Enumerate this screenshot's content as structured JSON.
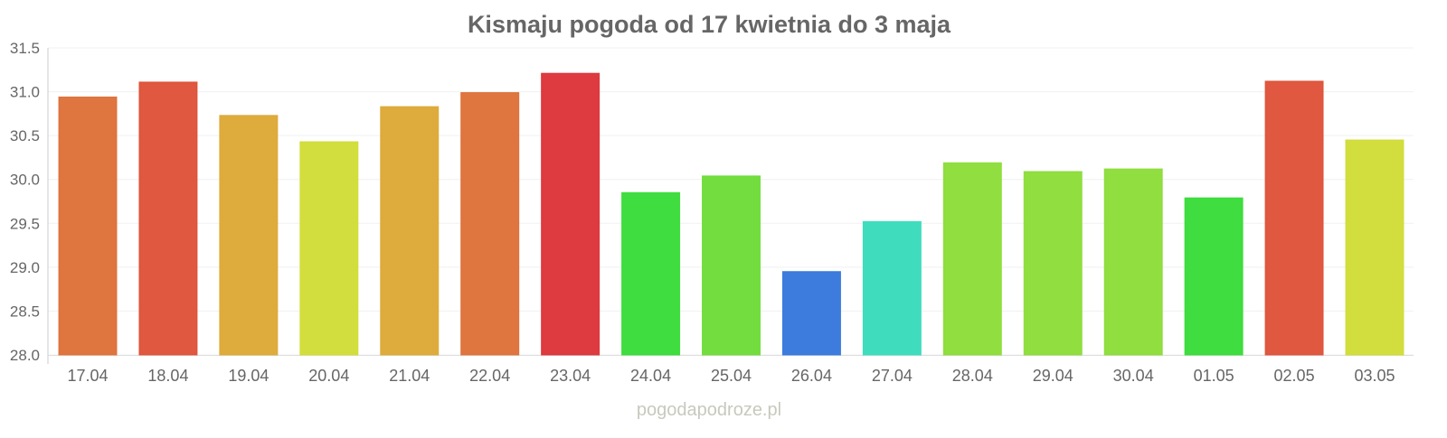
{
  "chart_data": {
    "type": "bar",
    "title": "Kismaju pogoda od 17 kwietnia do 3 maja",
    "xlabel": "",
    "ylabel": "",
    "ylim": [
      28.0,
      31.5
    ],
    "yticks": [
      "28.0",
      "28.5",
      "29.0",
      "29.5",
      "30.0",
      "30.5",
      "31.0",
      "31.5"
    ],
    "grid": true,
    "categories": [
      "17.04",
      "18.04",
      "19.04",
      "20.04",
      "21.04",
      "22.04",
      "23.04",
      "24.04",
      "25.04",
      "26.04",
      "27.04",
      "28.04",
      "29.04",
      "30.04",
      "01.05",
      "02.05",
      "03.05"
    ],
    "values": [
      30.94,
      31.11,
      30.73,
      30.43,
      30.83,
      30.99,
      31.21,
      29.85,
      30.04,
      28.95,
      29.52,
      30.19,
      30.09,
      30.12,
      29.79,
      31.12,
      30.45
    ],
    "colors": [
      "#dd6e35",
      "#dd4f35",
      "#dca733",
      "#d0dc33",
      "#dca733",
      "#dd6e35",
      "#db3035",
      "#35db35",
      "#6cdb35",
      "#3375db",
      "#35dbb9",
      "#8adc35",
      "#8adc35",
      "#8adc35",
      "#35db35",
      "#dd4f35",
      "#cfdc33"
    ]
  },
  "watermark": "pogodapodroze.pl"
}
